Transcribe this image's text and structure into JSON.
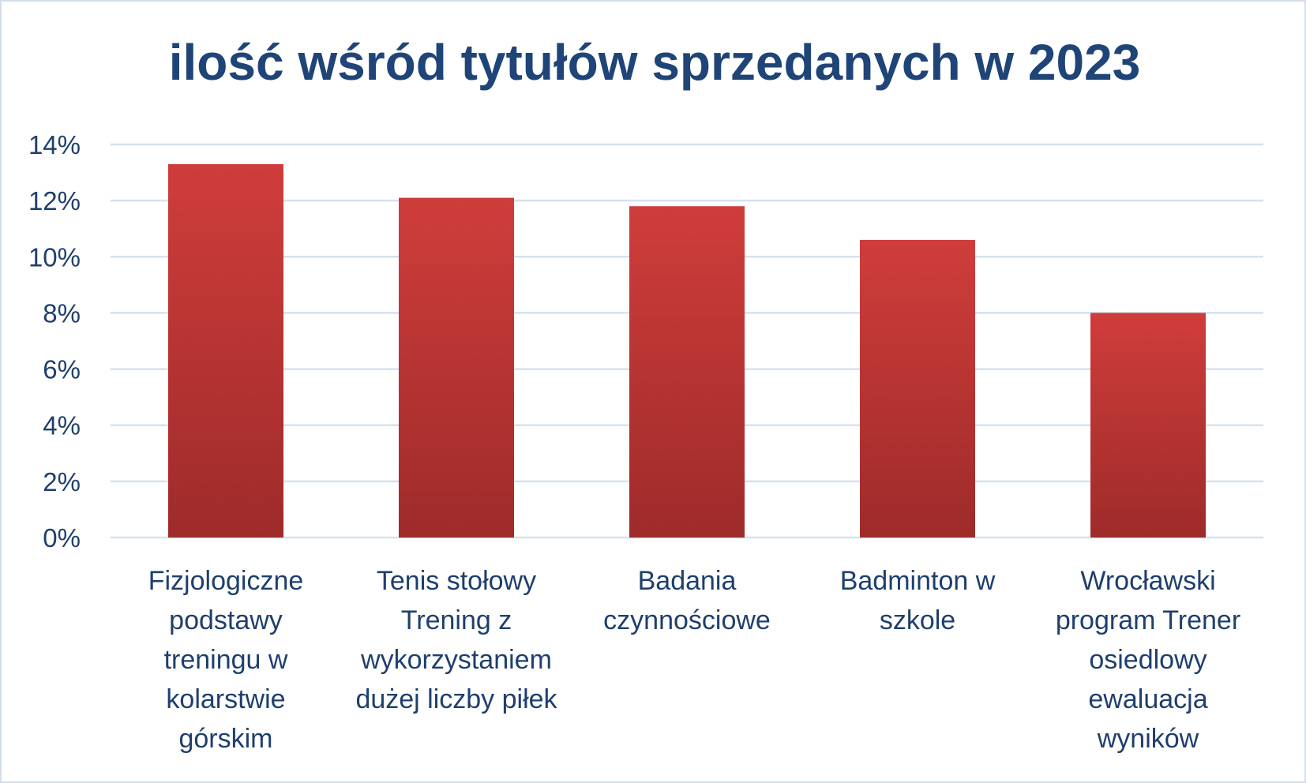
{
  "chart_data": {
    "type": "bar",
    "title": "ilość wśród tytułów sprzedanych w 2023",
    "xlabel": "",
    "ylabel": "",
    "categories": [
      [
        "Fizjologiczne",
        "podstawy",
        "treningu w",
        "kolarstwie",
        "górskim"
      ],
      [
        "Tenis stołowy",
        "Trening z",
        "wykorzystaniem",
        "dużej liczby piłek"
      ],
      [
        "Badania",
        "czynnościowe"
      ],
      [
        "Badminton w",
        "szkole"
      ],
      [
        "Wrocławski",
        "program Trener",
        "osiedlowy",
        "ewaluacja",
        "wyników"
      ]
    ],
    "values": [
      0.133,
      0.121,
      0.118,
      0.106,
      0.08
    ],
    "ylim": [
      0,
      0.14
    ],
    "yticks": [
      "0%",
      "2%",
      "4%",
      "6%",
      "8%",
      "10%",
      "12%",
      "14%"
    ],
    "grid": true,
    "legend": "none",
    "colors": {
      "bar_top": "#cf3d3b",
      "bar_bottom": "#9e2b2a",
      "grid": "#d6e1ee",
      "text": "#1f3f6d",
      "title": "#1f4477"
    }
  }
}
